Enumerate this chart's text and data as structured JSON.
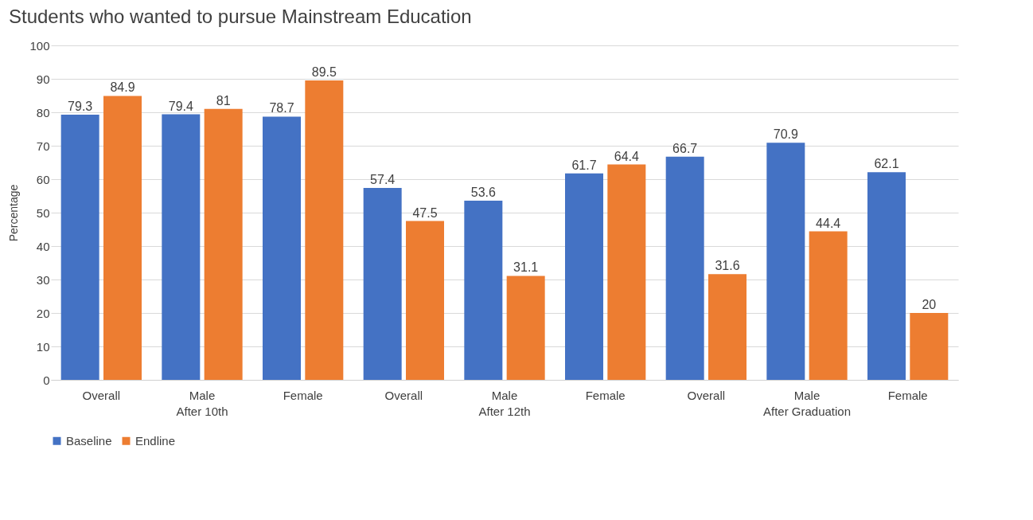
{
  "chart_data": {
    "type": "bar",
    "title": "Students who wanted to pursue Mainstream Education",
    "ylabel": "Percentage",
    "categories": [
      "Overall",
      "Male",
      "Female",
      "Overall",
      "Male",
      "Female",
      "Overall",
      "Male",
      "Female"
    ],
    "annotations": [
      "After 10th",
      "After 12th",
      "After Graduation"
    ],
    "series": [
      {
        "name": "Baseline",
        "color": "#4472c4",
        "values": [
          79.3,
          79.4,
          78.7,
          57.4,
          53.6,
          61.7,
          66.7,
          70.9,
          62.1
        ]
      },
      {
        "name": "Endline",
        "color": "#ed7d31",
        "values": [
          84.9,
          81,
          89.5,
          47.5,
          31.1,
          64.4,
          31.6,
          44.4,
          20
        ]
      }
    ],
    "ylim": [
      0,
      100
    ],
    "yticks": [
      0,
      10,
      20,
      30,
      40,
      50,
      60,
      70,
      80,
      90,
      100
    ],
    "grid": "y",
    "legend": "bottom",
    "data_labels": true
  }
}
